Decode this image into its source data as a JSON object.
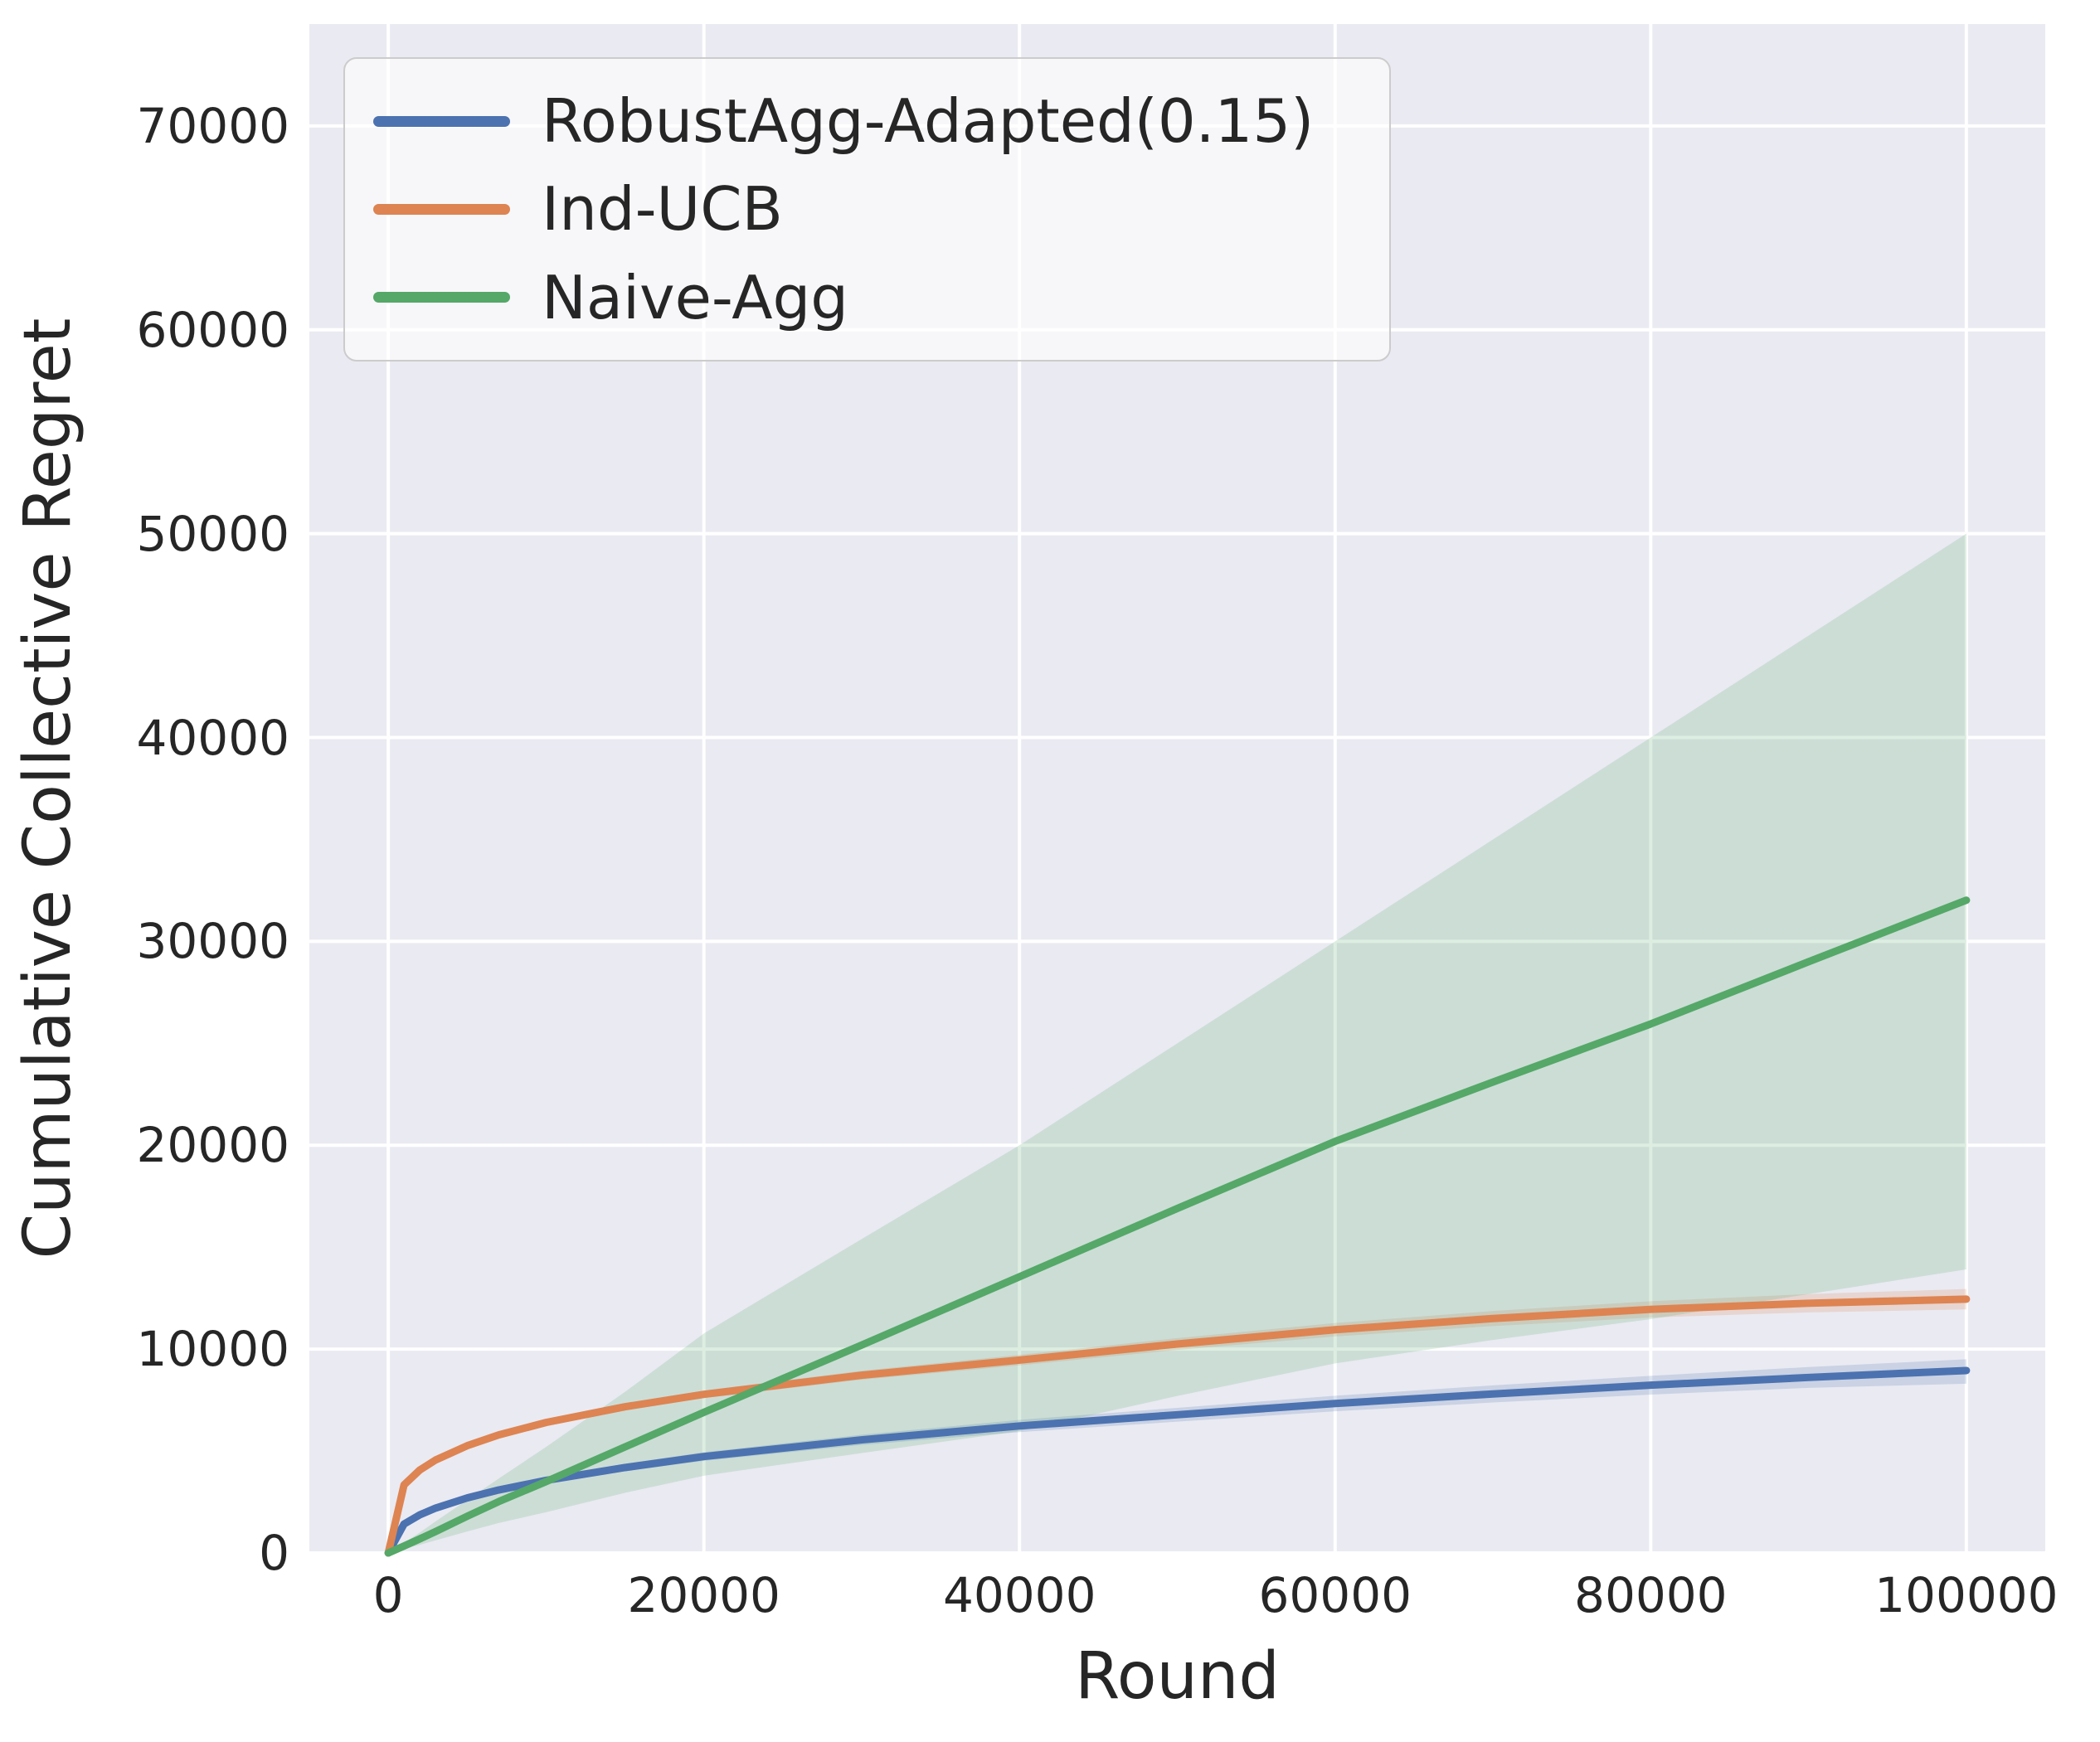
{
  "figure": {
    "kind": "seaborn-line-chart",
    "background_color": "#ffffff",
    "axes_background_color": "#eaeaf2",
    "grid_color": "#ffffff",
    "text_color": "#262626"
  },
  "chart_data": {
    "type": "line",
    "title": "",
    "xlabel": "Round",
    "ylabel": "Cumulative Collective Regret",
    "xlim": [
      -5000,
      105000
    ],
    "ylim": [
      0,
      75000
    ],
    "xticks": [
      0,
      20000,
      40000,
      60000,
      80000,
      100000
    ],
    "xtick_labels": [
      "0",
      "20000",
      "40000",
      "60000",
      "80000",
      "100000"
    ],
    "yticks": [
      0,
      10000,
      20000,
      30000,
      40000,
      50000,
      60000,
      70000
    ],
    "ytick_labels": [
      "0",
      "10000",
      "20000",
      "30000",
      "40000",
      "50000",
      "60000",
      "70000"
    ],
    "grid": true,
    "legend_position": "upper left",
    "band_alpha": 0.2,
    "x": [
      0,
      1000,
      2000,
      3000,
      5000,
      7000,
      10000,
      15000,
      20000,
      30000,
      40000,
      50000,
      60000,
      70000,
      80000,
      90000,
      100000
    ],
    "series": [
      {
        "name": "RobustAgg-Adapted(0.15)",
        "color": "#4c72b0",
        "y": [
          0,
          1420,
          1870,
          2200,
          2700,
          3090,
          3560,
          4190,
          4730,
          5550,
          6230,
          6780,
          7330,
          7800,
          8230,
          8610,
          8950
        ],
        "lo": [
          0,
          1360,
          1790,
          2110,
          2590,
          2960,
          3410,
          4010,
          4520,
          5300,
          5930,
          6440,
          6950,
          7380,
          7770,
          8100,
          8300
        ],
        "hi": [
          0,
          1480,
          1950,
          2290,
          2810,
          3220,
          3710,
          4370,
          4940,
          5800,
          6530,
          7120,
          7710,
          8220,
          8690,
          9120,
          9500
        ]
      },
      {
        "name": "Ind-UCB",
        "color": "#dd8452",
        "y": [
          0,
          3340,
          4070,
          4560,
          5260,
          5790,
          6400,
          7170,
          7780,
          8720,
          9460,
          10250,
          10950,
          11500,
          11950,
          12250,
          12450
        ],
        "lo": [
          0,
          3280,
          3990,
          4470,
          5150,
          5670,
          6260,
          7010,
          7600,
          8500,
          9200,
          9960,
          10620,
          11130,
          11550,
          11800,
          11950
        ],
        "hi": [
          0,
          3400,
          4150,
          4650,
          5370,
          5910,
          6540,
          7330,
          7960,
          8940,
          9720,
          10540,
          11280,
          11870,
          12350,
          12700,
          12950
        ]
      },
      {
        "name": "Naive-Agg",
        "color": "#55a868",
        "y": [
          0,
          340,
          690,
          1050,
          1800,
          2520,
          3500,
          5200,
          6900,
          10200,
          13550,
          16900,
          20190,
          23100,
          25950,
          29000,
          32020
        ],
        "lo": [
          0,
          200,
          400,
          620,
          1050,
          1470,
          2000,
          2950,
          3790,
          4900,
          5980,
          7700,
          9300,
          10450,
          11470,
          12700,
          13910
        ],
        "hi": [
          0,
          500,
          1000,
          1550,
          2600,
          3650,
          5200,
          7900,
          10770,
          15400,
          20000,
          25000,
          30000,
          35000,
          40000,
          45000,
          50000
        ]
      }
    ]
  }
}
